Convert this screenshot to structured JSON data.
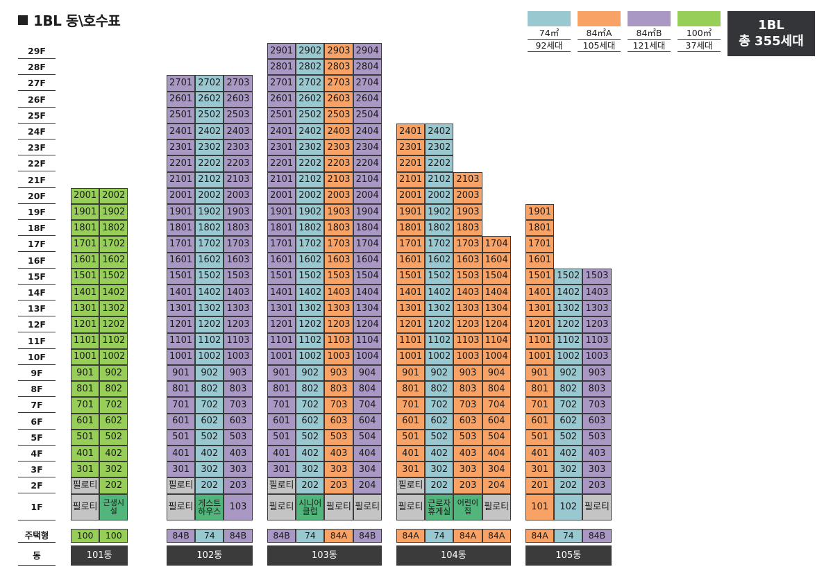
{
  "header": {
    "title": "1BL 동\\호수표"
  },
  "legend": [
    {
      "key": "74",
      "area": "74㎡",
      "count": "92세대",
      "color": "#9ac8d1"
    },
    {
      "key": "84A",
      "area": "84㎡A",
      "count": "105세대",
      "color": "#f8a365"
    },
    {
      "key": "84B",
      "area": "84㎡B",
      "count": "121세대",
      "color": "#a997c4"
    },
    {
      "key": "100",
      "area": "100㎡",
      "count": "37세대",
      "color": "#96ce57"
    }
  ],
  "total": {
    "line1": "1BL",
    "line2": "총 355세대"
  },
  "row_labels": {
    "type": "주택형",
    "dong": "동"
  },
  "special_labels": {
    "piloti": "필로티"
  },
  "floors": [
    "29F",
    "28F",
    "27F",
    "26F",
    "25F",
    "24F",
    "23F",
    "22F",
    "21F",
    "20F",
    "19F",
    "18F",
    "17F",
    "16F",
    "15F",
    "14F",
    "13F",
    "12F",
    "11F",
    "10F",
    "9F",
    "8F",
    "7F",
    "6F",
    "5F",
    "4F",
    "3F",
    "2F",
    "1F"
  ],
  "buildings": [
    {
      "name": "101동",
      "types": [
        "100",
        "100"
      ],
      "top_floors": [
        20,
        20
      ],
      "floor2": [
        "P",
        "202"
      ],
      "floor1": [
        "P",
        {
          "fac": "근생시설"
        }
      ]
    },
    {
      "name": "102동",
      "types": [
        "84B",
        "74",
        "84B"
      ],
      "top_floors": [
        27,
        27,
        27
      ],
      "floor2": [
        "P",
        "202",
        "203"
      ],
      "floor1": [
        "P",
        {
          "fac": "게스트\n하우스"
        },
        "103"
      ]
    },
    {
      "name": "103동",
      "types": [
        "84B",
        "74",
        "84A",
        "84B"
      ],
      "top_floors": [
        29,
        29,
        29,
        29
      ],
      "floor2": [
        "P",
        "202",
        "203",
        "204"
      ],
      "floor1": [
        "P",
        {
          "fac": "시니어\n클럽"
        },
        "P",
        "P"
      ]
    },
    {
      "name": "104동",
      "types": [
        "84A",
        "74",
        "84A",
        "84A"
      ],
      "top_floors": [
        24,
        24,
        21,
        17
      ],
      "floor2": [
        "P",
        "202",
        "203",
        "204"
      ],
      "floor1": [
        "P",
        {
          "fac": "근로자\n휴게실"
        },
        {
          "fac": "어린이집"
        },
        "P"
      ]
    },
    {
      "name": "105동",
      "types": [
        "84A",
        "74",
        "84B"
      ],
      "top_floors": [
        19,
        15,
        15
      ],
      "floor2": [
        "201",
        "202",
        "203"
      ],
      "floor1": [
        "101",
        "102",
        "P"
      ]
    }
  ]
}
